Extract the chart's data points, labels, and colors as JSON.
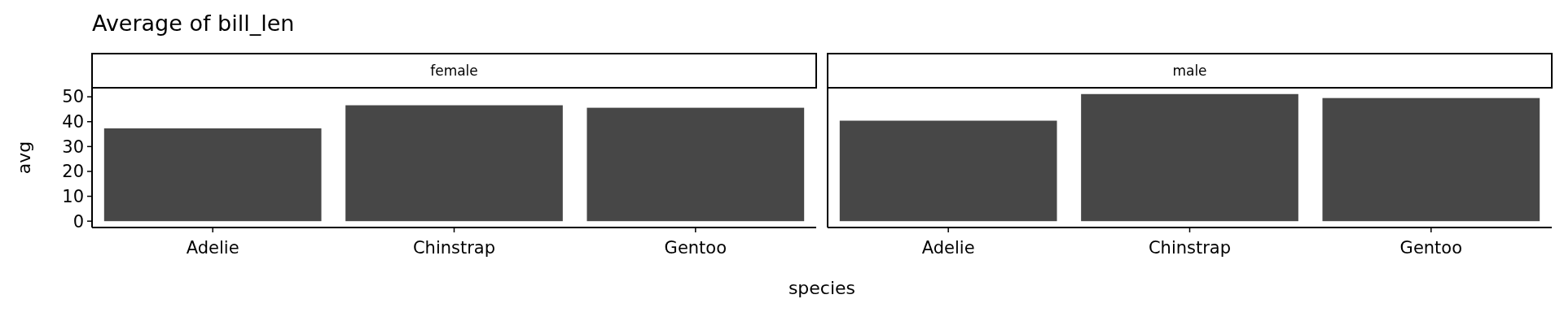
{
  "chart_data": [
    {
      "type": "bar",
      "title": "Average of bill_len",
      "subtitle": "female",
      "xlabel": "species",
      "ylabel": "avg",
      "categories": [
        "Adelie",
        "Chinstrap",
        "Gentoo"
      ],
      "values": [
        37.3,
        46.6,
        45.6
      ],
      "color": "#474747",
      "ylim": [
        -2.55,
        53.64
      ],
      "yticks": [
        0,
        10,
        20,
        30,
        40,
        50
      ]
    },
    {
      "type": "bar",
      "subtitle": "male",
      "categories": [
        "Adelie",
        "Chinstrap",
        "Gentoo"
      ],
      "values": [
        40.4,
        51.1,
        49.5
      ],
      "color": "#474747",
      "ylim": [
        -2.55,
        53.64
      ],
      "tick_labels": "x"
    }
  ]
}
